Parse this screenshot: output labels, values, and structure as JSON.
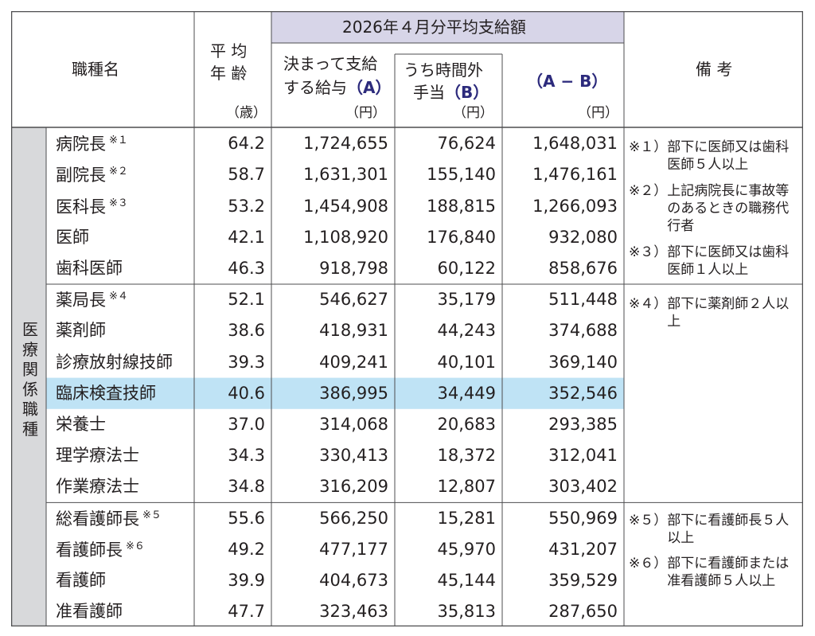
{
  "colors": {
    "header_purple": "#d7d5e8",
    "category_gray": "#d8d9db",
    "highlight_blue": "#bfe3f5",
    "border": "#4d4d4f",
    "accent_text": "#2c2a7c"
  },
  "header": {
    "job_name": "職種名",
    "age_line1": "平 均",
    "age_line2": "年 齢",
    "age_unit": "（歳）",
    "group_title": "2026年４月分平均支給額",
    "colA_line1": "決まって支給",
    "colA_line2": "する給与",
    "colA_mark": "（A）",
    "colA_unit": "（円）",
    "colB_line1": "うち時間外",
    "colB_line2": "手当",
    "colB_mark": "（B）",
    "colB_unit": "（円）",
    "colAB": "（A − B）",
    "colAB_unit": "（円）",
    "remarks": "備 考"
  },
  "category_label": "医療関係職種",
  "rows": [
    {
      "name": "病院長",
      "sup": "※１",
      "age": "64.2",
      "a": "1,724,655",
      "b": "76,624",
      "ab": "1,648,031"
    },
    {
      "name": "副院長",
      "sup": "※２",
      "age": "58.7",
      "a": "1,631,301",
      "b": "155,140",
      "ab": "1,476,161"
    },
    {
      "name": "医科長",
      "sup": "※３",
      "age": "53.2",
      "a": "1,454,908",
      "b": "188,815",
      "ab": "1,266,093"
    },
    {
      "name": "医師",
      "sup": "",
      "age": "42.1",
      "a": "1,108,920",
      "b": "176,840",
      "ab": "932,080"
    },
    {
      "name": "歯科医師",
      "sup": "",
      "age": "46.3",
      "a": "918,798",
      "b": "60,122",
      "ab": "858,676"
    },
    {
      "name": "薬局長",
      "sup": "※４",
      "age": "52.1",
      "a": "546,627",
      "b": "35,179",
      "ab": "511,448"
    },
    {
      "name": "薬剤師",
      "sup": "",
      "age": "38.6",
      "a": "418,931",
      "b": "44,243",
      "ab": "374,688"
    },
    {
      "name": "診療放射線技師",
      "sup": "",
      "age": "39.3",
      "a": "409,241",
      "b": "40,101",
      "ab": "369,140"
    },
    {
      "name": "臨床検査技師",
      "sup": "",
      "age": "40.6",
      "a": "386,995",
      "b": "34,449",
      "ab": "352,546"
    },
    {
      "name": "栄養士",
      "sup": "",
      "age": "37.0",
      "a": "314,068",
      "b": "20,683",
      "ab": "293,385"
    },
    {
      "name": "理学療法士",
      "sup": "",
      "age": "34.3",
      "a": "330,413",
      "b": "18,372",
      "ab": "312,041"
    },
    {
      "name": "作業療法士",
      "sup": "",
      "age": "34.8",
      "a": "316,209",
      "b": "12,807",
      "ab": "303,402"
    },
    {
      "name": "総看護師長",
      "sup": "※５",
      "age": "55.6",
      "a": "566,250",
      "b": "15,281",
      "ab": "550,969"
    },
    {
      "name": "看護師長",
      "sup": "※６",
      "age": "49.2",
      "a": "477,177",
      "b": "45,970",
      "ab": "431,207"
    },
    {
      "name": "看護師",
      "sup": "",
      "age": "39.9",
      "a": "404,673",
      "b": "45,144",
      "ab": "359,529"
    },
    {
      "name": "准看護師",
      "sup": "",
      "age": "47.7",
      "a": "323,463",
      "b": "35,813",
      "ab": "287,650"
    }
  ],
  "notes": [
    {
      "mark": "※１）",
      "text": "部下に医師又は歯科医師５人以上"
    },
    {
      "mark": "※２）",
      "text": "上記病院長に事故等のあるときの職務代行者"
    },
    {
      "mark": "※３）",
      "text": "部下に医師又は歯科医師１人以上"
    },
    {
      "mark": "※４）",
      "text": "部下に薬剤師２人以上"
    },
    {
      "mark": "※５）",
      "text": "部下に看護師長５人以上"
    },
    {
      "mark": "※６）",
      "text": "部下に看護師または准看護師５人以上"
    }
  ]
}
